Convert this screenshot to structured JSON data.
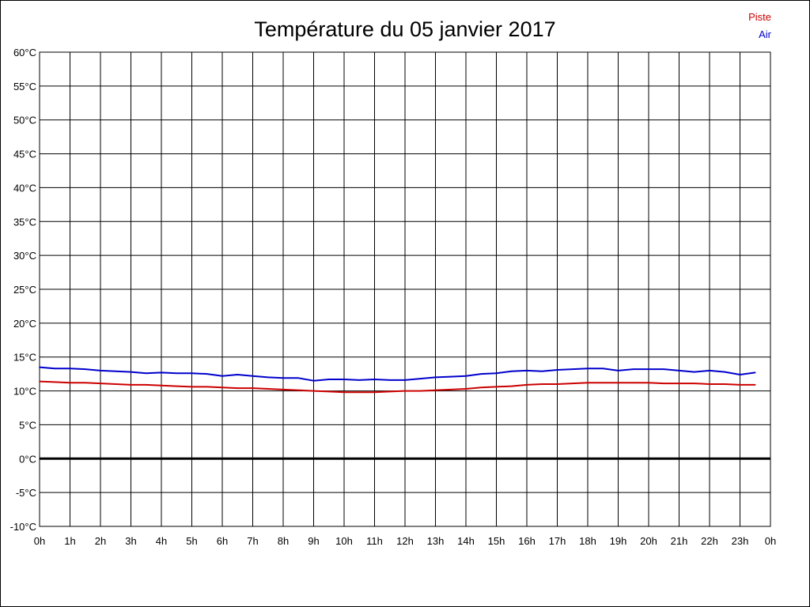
{
  "chart_data": {
    "type": "line",
    "title": "Température du 05 janvier 2017",
    "xlabel": "",
    "ylabel": "",
    "x_tick_labels": [
      "0h",
      "1h",
      "2h",
      "3h",
      "4h",
      "5h",
      "6h",
      "7h",
      "8h",
      "9h",
      "10h",
      "11h",
      "12h",
      "13h",
      "14h",
      "15h",
      "16h",
      "17h",
      "18h",
      "19h",
      "20h",
      "21h",
      "22h",
      "23h",
      "0h"
    ],
    "y_tick_labels": [
      "60°C",
      "55°C",
      "50°C",
      "45°C",
      "40°C",
      "35°C",
      "30°C",
      "25°C",
      "20°C",
      "15°C",
      "10°C",
      "5°C",
      "0°C",
      "-5°C",
      "-10°C"
    ],
    "xlim": [
      0,
      24
    ],
    "ylim": [
      -10,
      60
    ],
    "grid": true,
    "legend_position": "top-right",
    "zero_line": 0,
    "series": [
      {
        "name": "Piste",
        "color": "#cc0000",
        "x": [
          0,
          0.5,
          1,
          1.5,
          2,
          2.5,
          3,
          3.5,
          4,
          4.5,
          5,
          5.5,
          6,
          6.5,
          7,
          7.5,
          8,
          8.5,
          9,
          9.5,
          10,
          10.5,
          11,
          11.5,
          12,
          12.5,
          13,
          13.5,
          14,
          14.5,
          15,
          15.5,
          16,
          16.5,
          17,
          17.5,
          18,
          18.5,
          19,
          19.5,
          20,
          20.5,
          21,
          21.5,
          22,
          22.5,
          23,
          23.5
        ],
        "values": [
          11.4,
          11.3,
          11.2,
          11.2,
          11.1,
          11.0,
          10.9,
          10.9,
          10.8,
          10.7,
          10.6,
          10.6,
          10.5,
          10.4,
          10.4,
          10.3,
          10.2,
          10.1,
          10.0,
          9.9,
          9.8,
          9.8,
          9.8,
          9.9,
          10.0,
          10.0,
          10.1,
          10.2,
          10.3,
          10.5,
          10.6,
          10.7,
          10.9,
          11.0,
          11.0,
          11.1,
          11.2,
          11.2,
          11.2,
          11.2,
          11.2,
          11.1,
          11.1,
          11.1,
          11.0,
          11.0,
          10.9,
          10.9
        ]
      },
      {
        "name": "Air",
        "color": "#0000cc",
        "x": [
          0,
          0.5,
          1,
          1.5,
          2,
          2.5,
          3,
          3.5,
          4,
          4.5,
          5,
          5.5,
          6,
          6.5,
          7,
          7.5,
          8,
          8.5,
          9,
          9.5,
          10,
          10.5,
          11,
          11.5,
          12,
          12.5,
          13,
          13.5,
          14,
          14.5,
          15,
          15.5,
          16,
          16.5,
          17,
          17.5,
          18,
          18.5,
          19,
          19.5,
          20,
          20.5,
          21,
          21.5,
          22,
          22.5,
          23,
          23.5
        ],
        "values": [
          13.5,
          13.3,
          13.3,
          13.2,
          13.0,
          12.9,
          12.8,
          12.6,
          12.7,
          12.6,
          12.6,
          12.5,
          12.2,
          12.4,
          12.2,
          12.0,
          11.9,
          11.9,
          11.5,
          11.7,
          11.7,
          11.6,
          11.7,
          11.6,
          11.6,
          11.8,
          12.0,
          12.1,
          12.2,
          12.5,
          12.6,
          12.9,
          13.0,
          12.9,
          13.1,
          13.2,
          13.3,
          13.3,
          13.0,
          13.2,
          13.2,
          13.2,
          13.0,
          12.8,
          13.0,
          12.8,
          12.4,
          12.7
        ]
      }
    ]
  }
}
